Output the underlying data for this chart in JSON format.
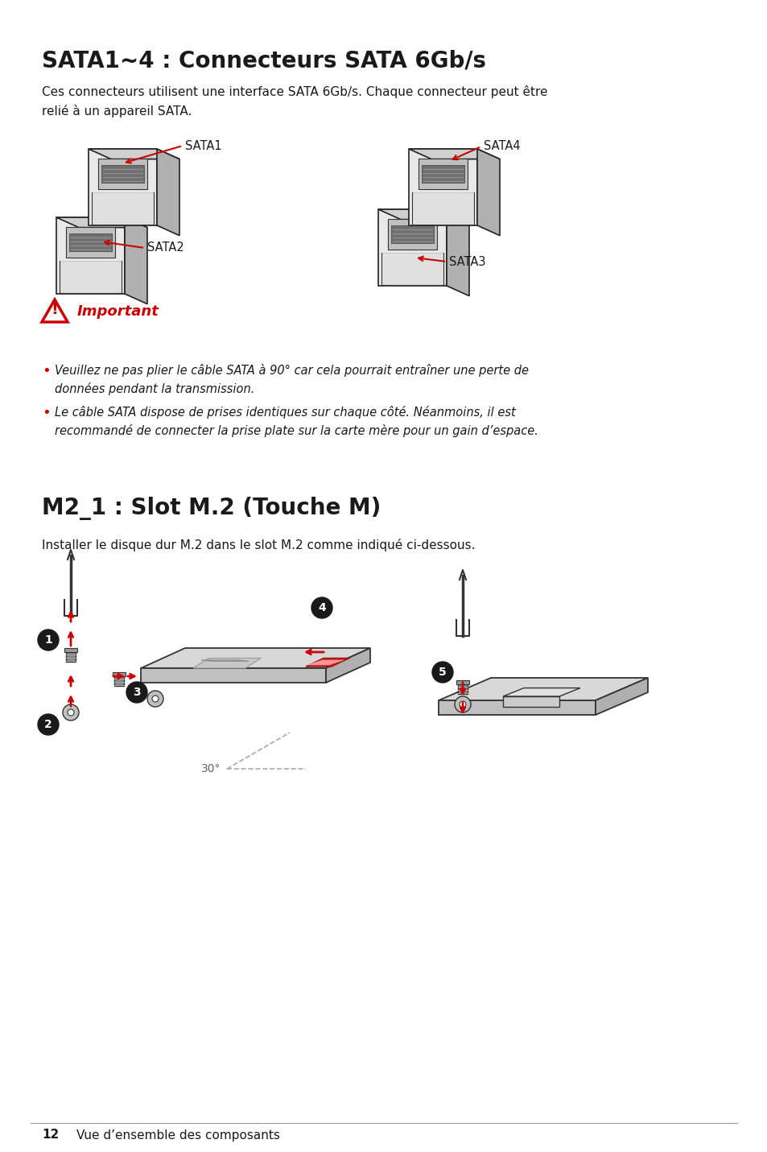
{
  "bg_color": "#ffffff",
  "title1": "SATA1~4 : Connecteurs SATA 6Gb/s",
  "desc1": "Ces connecteurs utilisent une interface SATA 6Gb/s. Chaque connecteur peut être\nrelié à un appareil SATA.",
  "important_label": "Important",
  "bullet1": " Veuillez ne pas plier le câble SATA à 90° car cela pourrait entraîner une perte de\ndonnées pendant la transmission.",
  "bullet2": " Le câble SATA dispose de prises identiques sur chaque côté. Néanmoins, il est\nrecommandé de connecter la prise plate sur la carte mère pour un gain d’espace.",
  "title2": "M2_1 : Slot M.2 (Touche M)",
  "desc2": "Installer le disque dur M.2 dans le slot M.2 comme indiqué ci-dessous.",
  "footer_num": "12",
  "footer_text": "Vue d’ensemble des composants",
  "red_color": "#cc0000",
  "black_color": "#1a1a1a",
  "dark_gray": "#333333",
  "mid_gray": "#666666",
  "light_gray": "#aaaaaa",
  "connector_face": "#e8e8e8",
  "connector_top": "#d0d0d0",
  "connector_side": "#b0b0b0",
  "connector_slot_dark": "#888888",
  "connector_edge": "#222222"
}
